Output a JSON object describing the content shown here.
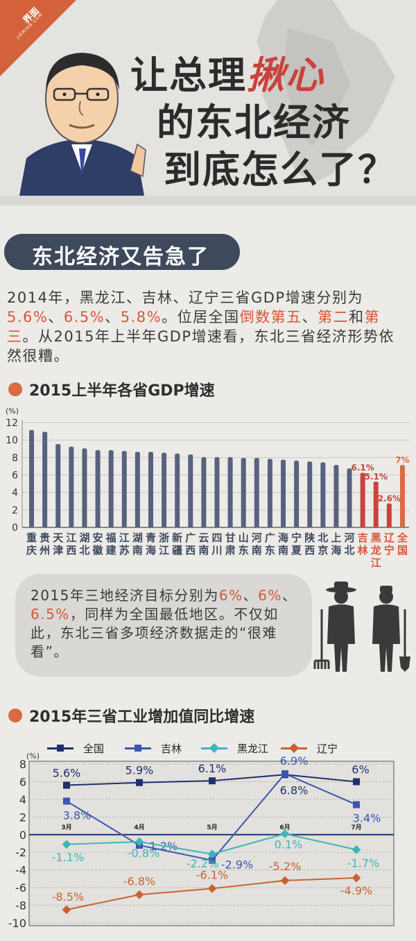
{
  "logo": {
    "name": "界面",
    "sub": "JIEMIAN.COM"
  },
  "title": {
    "line1_a": "让总理",
    "line1_b": "揪心",
    "line2": "的东北经济",
    "line3": "到底怎么了？"
  },
  "banner": "东北经济又告急了",
  "intro": {
    "p1": "2014年，黑龙江、吉林、辽宁三省GDP增速分别为",
    "r1": "5.6%",
    "s1": "、",
    "r2": "6.5%",
    "s2": "、",
    "r3": "5.8%",
    "p2": "。位居全国",
    "r4": "倒数第五",
    "s3": "、",
    "r5": "第二",
    "p3": "和",
    "r6": "第三",
    "p4": "。从2015年上半年GDP增速看，东北三省经济形势依然很糟。"
  },
  "section1": "2015上半年各省GDP增速",
  "section2": "2015年三省工业增加值同比增速",
  "bubble": {
    "t1": "2015年三地经济目标分别为",
    "r1": "6%",
    "s1": "、",
    "r2": "6%",
    "s2": "、",
    "r3": "6.5%",
    "t2": "，同样为全国最低地区。不仅如此，东北三省多项经济数据走的“很难看”。"
  },
  "colors": {
    "accent": "#d9553a",
    "bar": "#58627e",
    "bar_ne": "#c9433c",
    "bar_nat": "#d96b43",
    "dark": "#3e4a5c",
    "jilin": "#3a56b0",
    "quanguo": "#1f2f6e",
    "hlj": "#3fb5bb",
    "ln": "#c9622f"
  },
  "chart_data": [
    {
      "type": "bar",
      "title": "2015上半年各省GDP增速",
      "ylabel": "(%)",
      "ylim": [
        0,
        12
      ],
      "yticks": [
        0,
        2,
        4,
        6,
        8,
        10,
        12
      ],
      "categories": [
        "重庆",
        "贵州",
        "天津",
        "江西",
        "湖北",
        "安徽",
        "福建",
        "江苏",
        "湖南",
        "青海",
        "浙江",
        "新疆",
        "广西",
        "云南",
        "四川",
        "甘肃",
        "山东",
        "河南",
        "广东",
        "海南",
        "宁夏",
        "陕西",
        "北京",
        "上海",
        "河北",
        "吉林",
        "黑龙江",
        "辽宁",
        "全国"
      ],
      "values": [
        11.0,
        10.8,
        9.4,
        9.1,
        8.9,
        8.7,
        8.7,
        8.6,
        8.5,
        8.5,
        8.4,
        8.3,
        8.2,
        7.9,
        7.9,
        7.9,
        7.8,
        7.8,
        7.7,
        7.6,
        7.5,
        7.4,
        7.3,
        7.0,
        6.6,
        6.1,
        5.1,
        2.6,
        7.0
      ],
      "data_labels": {
        "吉林": "6.1%",
        "黑龙江": "5.1%",
        "辽宁": "2.6%",
        "全国": "7%"
      }
    },
    {
      "type": "line",
      "title": "2015年三省工业增加值同比增速",
      "ylabel": "(%)",
      "ylim": [
        -10,
        8
      ],
      "yticks": [
        8,
        6,
        4,
        2,
        0,
        -2,
        -4,
        -6,
        -8,
        -10
      ],
      "categories": [
        "3月",
        "4月",
        "5月",
        "6月",
        "7月"
      ],
      "legend_position": "top",
      "series": [
        {
          "name": "全国",
          "values": [
            5.6,
            5.9,
            6.1,
            6.8,
            6.0
          ],
          "labels": [
            "5.6%",
            "5.9%",
            "6.1%",
            "6.8%",
            "6%"
          ]
        },
        {
          "name": "吉林",
          "values": [
            3.8,
            -1.2,
            -2.9,
            6.9,
            3.4
          ],
          "labels": [
            "3.8%",
            "-1.2%",
            "-2.9%",
            "6.9%",
            "3.4%"
          ]
        },
        {
          "name": "黑龙江",
          "values": [
            -1.1,
            -0.8,
            -2.2,
            0.1,
            -1.7
          ],
          "labels": [
            "-1.1%",
            "-0.8%",
            "-2.2%",
            "0.1%",
            "-1.7%"
          ]
        },
        {
          "name": "辽宁",
          "values": [
            -8.5,
            -6.8,
            -6.1,
            -5.2,
            -4.9
          ],
          "labels": [
            "-8.5%",
            "-6.8%",
            "-6.1%",
            "-5.2%",
            "-4.9%"
          ]
        }
      ]
    }
  ]
}
